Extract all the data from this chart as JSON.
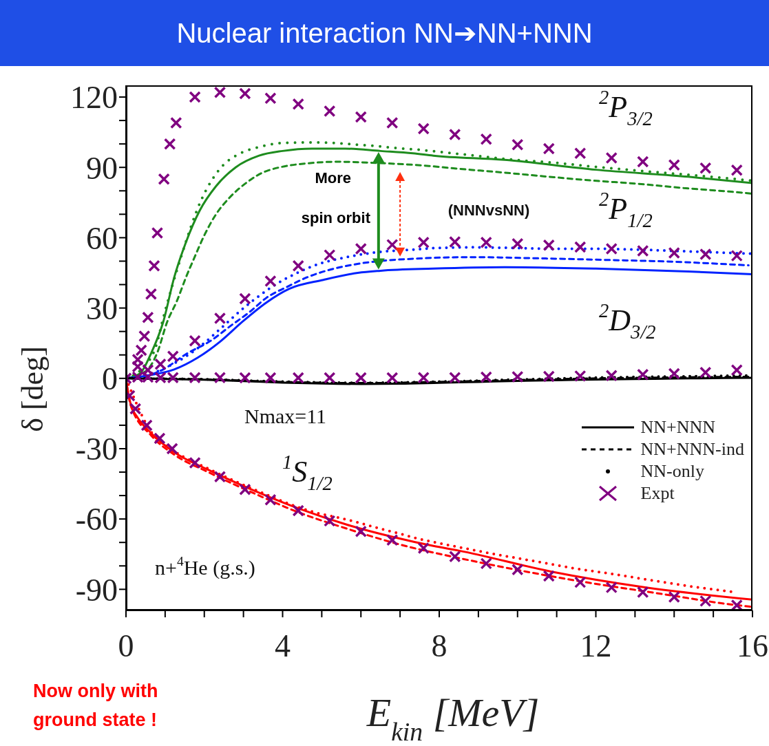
{
  "chart_data": {
    "type": "line",
    "title": "Nuclear interaction NN➔NN+NNN",
    "xlabel": "E$_{kin}$ [MeV]",
    "ylabel": "δ [deg]",
    "xlim": [
      0,
      16
    ],
    "ylim": [
      -99,
      125
    ],
    "xticks": [
      0,
      {
        "value": 1,
        "label": null
      },
      {
        "value": 2,
        "label": null
      },
      {
        "value": 3,
        "label": null
      },
      4,
      {
        "value": 5,
        "label": null
      },
      {
        "value": 6,
        "label": null
      },
      {
        "value": 7,
        "label": null
      },
      8,
      {
        "value": 9,
        "label": null
      },
      {
        "value": 10,
        "label": null
      },
      {
        "value": 11,
        "label": null
      },
      12,
      {
        "value": 13,
        "label": null
      },
      {
        "value": 14,
        "label": null
      },
      {
        "value": 15,
        "label": null
      },
      16
    ],
    "yticks": [
      -90,
      {
        "value": -80,
        "label": null
      },
      {
        "value": -70,
        "label": null
      },
      -60,
      {
        "value": -50,
        "label": null
      },
      {
        "value": -40,
        "label": null
      },
      -30,
      {
        "value": -20,
        "label": null
      },
      {
        "value": -10,
        "label": null
      },
      0,
      {
        "value": 10,
        "label": null
      },
      {
        "value": 20,
        "label": null
      },
      30,
      {
        "value": 40,
        "label": null
      },
      {
        "value": 50,
        "label": null
      },
      60,
      {
        "value": 70,
        "label": null
      },
      {
        "value": 80,
        "label": null
      },
      90,
      {
        "value": 100,
        "label": null
      },
      {
        "value": 110,
        "label": null
      },
      120
    ],
    "legend": "bottom right",
    "series": [
      {
        "line_style": "solid",
        "color": "#1e8c1e",
        "x": [
          0,
          0.35,
          0.65,
          0.95,
          1.23,
          1.53,
          1.88,
          2.3,
          2.8,
          3.4,
          4.0,
          4.75,
          5.6,
          6.5,
          7.33,
          7.85,
          9.67,
          12.0,
          14.36,
          16
        ],
        "values": [
          0,
          2,
          11,
          24,
          43,
          58,
          71.5,
          82,
          90,
          95,
          97,
          98,
          98,
          97,
          96,
          95,
          93.2,
          89,
          86,
          83.3
        ]
      },
      {
        "type": "line",
        "line_style": "dashed",
        "color": "#1e8c1e",
        "x": [
          0,
          0.5,
          0.8,
          1.05,
          1.3,
          1.53,
          1.76,
          2.0,
          2.3,
          2.64,
          3.08,
          3.6,
          4.82,
          5.4,
          6.22,
          7.74,
          8.3,
          9.5,
          10.67,
          11.9,
          13.07,
          14.24,
          15.4,
          16
        ],
        "values": [
          0,
          3,
          11,
          24,
          33,
          43,
          52,
          61,
          70,
          77,
          83.5,
          88.5,
          92,
          92.4,
          92,
          90.6,
          89.7,
          88,
          86.2,
          84.4,
          83,
          81.2,
          79.7,
          78.8
        ]
      },
      {
        "type": "line",
        "line_style": "dotted",
        "color": "#1e8c1e",
        "x": [
          0,
          0.4,
          0.79,
          0.91,
          1.41,
          1.92,
          2.4,
          2.92,
          3.43,
          3.92,
          4.41,
          4.92,
          5.41,
          5.9,
          6.41,
          6.92,
          7.42,
          7.91,
          8.91,
          9.93,
          10.93,
          11.95,
          12.93,
          13.95,
          14.94,
          15.94
        ],
        "values": [
          0,
          4,
          15,
          23,
          52,
          76,
          89.4,
          96,
          98.8,
          100.3,
          100.6,
          100.6,
          100.3,
          99.7,
          99.1,
          98.2,
          97.6,
          96.8,
          95,
          93.2,
          92,
          90.3,
          88.8,
          87.4,
          86,
          84.4
        ]
      },
      {
        "type": "line",
        "line_style": "solid",
        "color": "#0022ff",
        "x": [
          0,
          0.65,
          1.23,
          1.83,
          2.4,
          2.99,
          3.59,
          4.17,
          5.04,
          5.92,
          6.5,
          7.85,
          9.67,
          12.0,
          14.36,
          16
        ],
        "values": [
          0,
          1.5,
          3.8,
          8.8,
          15.6,
          24.4,
          32.4,
          38.2,
          42,
          45,
          45.9,
          46.8,
          47.4,
          46.8,
          45.6,
          44.4
        ]
      },
      {
        "type": "line",
        "line_style": "dashed",
        "color": "#0022ff",
        "x": [
          0,
          0.5,
          0.95,
          1.53,
          2.18,
          2.64,
          3.17,
          3.59,
          4.11,
          4.64,
          5.22,
          5.8,
          7.56,
          8.79,
          10.55,
          12.3,
          14.06,
          15.9
        ],
        "values": [
          0,
          1,
          3.8,
          10.3,
          16.2,
          22,
          28.5,
          34.4,
          39,
          43.2,
          46.4,
          48.5,
          51.2,
          51.7,
          51.2,
          50.5,
          49.7,
          48.2
        ]
      },
      {
        "type": "line",
        "line_style": "dotted",
        "color": "#0022ff",
        "x": [
          0,
          0.5,
          0.91,
          1.42,
          1.92,
          2.4,
          2.92,
          3.41,
          3.92,
          4.41,
          4.92,
          5.41,
          5.92,
          6.41,
          7.42,
          7.91,
          8.91,
          9.93,
          10.93,
          11.95,
          12.93,
          13.95,
          14.94,
          15.94
        ],
        "values": [
          0,
          1.2,
          3.8,
          8.2,
          14,
          21,
          28.8,
          35.3,
          41,
          45.3,
          48.8,
          50.9,
          52.6,
          53.8,
          55,
          55.6,
          55.9,
          55.6,
          55.3,
          55.3,
          55,
          54.4,
          53.8,
          53.2
        ]
      },
      {
        "type": "line",
        "line_style": "solid",
        "color": "#ff0000",
        "x": [
          0,
          0.03,
          0.12,
          0.3,
          0.65,
          1.23,
          2.1,
          3.29,
          4.46,
          5.62,
          6.8,
          7.85,
          8.5,
          10.85,
          13.2,
          16
        ],
        "values": [
          0,
          -3.8,
          -11,
          -16.8,
          -23.5,
          -31.5,
          -39,
          -48,
          -55.8,
          -62.3,
          -67.6,
          -71.5,
          -73.5,
          -82.4,
          -89,
          -94.4
        ]
      },
      {
        "type": "line",
        "line_style": "dashed",
        "color": "#ff0000",
        "x": [
          0,
          0.12,
          0.65,
          1.23,
          2.1,
          3.29,
          4.46,
          5.62,
          6.8,
          9.03,
          11.4,
          13.7,
          15.47,
          16
        ],
        "values": [
          0,
          -11.5,
          -24.5,
          -32.5,
          -40,
          -49.2,
          -57.5,
          -64,
          -70,
          -78.5,
          -86,
          -92,
          -96.5,
          -97.5
        ]
      },
      {
        "type": "line",
        "line_style": "dotted",
        "color": "#ff0000",
        "x": [
          0,
          0.65,
          1.23,
          2.1,
          3.29,
          4.92,
          5.43,
          5.93,
          6.42,
          6.93,
          7.42,
          8.44,
          9.42,
          10.44,
          11.43,
          12.44,
          13.44,
          14.45,
          15.45
        ],
        "values": [
          0,
          -23,
          -31,
          -38.5,
          -47.5,
          -57.6,
          -59.4,
          -61.5,
          -63.8,
          -66,
          -68.2,
          -71.8,
          -75,
          -78,
          -81,
          -83.5,
          -86.2,
          -88.8,
          -91
        ]
      },
      {
        "name": "NN+NNN",
        "type": "line",
        "line_style": "solid",
        "color": "#000000",
        "x": [
          0,
          1,
          2,
          3,
          4,
          5,
          6,
          7,
          8,
          9,
          10,
          11,
          12,
          13,
          14,
          15,
          16
        ],
        "values": [
          0,
          -0.3,
          -0.6,
          -1.2,
          -1.8,
          -2.2,
          -2.4,
          -2.3,
          -1.9,
          -1.5,
          -1.1,
          -0.8,
          -0.5,
          -0.3,
          -0.1,
          0.1,
          0.2
        ]
      },
      {
        "name": "NN+NNN-ind",
        "type": "line",
        "line_style": "dashed",
        "color": "#000000",
        "x": [
          0,
          2,
          4,
          6,
          8,
          10,
          12,
          14,
          16
        ],
        "values": [
          0,
          -0.4,
          -1.5,
          -2,
          -1.5,
          -0.7,
          0,
          0.4,
          0.7
        ]
      },
      {
        "name": "NN-only",
        "type": "line",
        "line_style": "dotted",
        "color": "#000000",
        "x": [
          0,
          2,
          4,
          6,
          8,
          10,
          12,
          14,
          16
        ],
        "values": [
          0,
          -0.4,
          -1.4,
          -1.9,
          -1.4,
          -0.5,
          0.3,
          0.8,
          1.2
        ]
      },
      {
        "name": "Expt",
        "type": "scatter",
        "marker": "cross",
        "color": "#800080",
        "x": [
          0,
          0.3,
          0.39,
          0.47,
          0.56,
          0.64,
          0.72,
          0.8,
          0.97,
          1.12,
          1.28,
          1.76,
          2.4,
          3.04,
          3.69,
          4.4,
          5.2,
          6.0,
          6.8,
          7.6,
          8.4,
          9.2,
          10.0,
          10.8,
          11.6,
          12.4,
          13.2,
          14.0,
          14.8,
          15.6,
          0.3,
          0.56,
          0.88,
          1.2,
          1.76,
          2.4,
          3.04,
          3.69,
          4.4,
          5.2,
          6.0,
          6.8,
          7.6,
          8.4,
          9.2,
          10.0,
          10.8,
          11.6,
          12.4,
          13.2,
          14.0,
          14.8,
          15.6,
          0.3,
          0.56,
          0.88,
          1.2,
          1.76,
          2.4,
          3.04,
          3.69,
          4.4,
          5.2,
          6.0,
          6.8,
          7.6,
          8.4,
          9.2,
          10.0,
          10.8,
          11.6,
          12.4,
          13.2,
          14.0,
          14.8,
          15.6,
          0.09,
          0.24,
          0.53,
          0.86,
          1.18,
          1.76,
          2.4,
          3.04,
          3.69,
          4.4,
          5.2,
          6.0,
          6.8,
          7.6,
          8.4,
          9.2,
          10.0,
          10.8,
          11.6,
          12.4,
          13.2,
          14.0,
          14.8,
          15.6
        ],
        "values": [
          0,
          8,
          12,
          18,
          26,
          36,
          48,
          62,
          85,
          100,
          109,
          120,
          122,
          121.5,
          119.5,
          117,
          114,
          111.5,
          109,
          106.5,
          104,
          102,
          99.7,
          98,
          96,
          94,
          92.4,
          91,
          89.7,
          88.8,
          5,
          3.5,
          6,
          9.4,
          16,
          25.6,
          34,
          41.5,
          48,
          52.6,
          55.3,
          57,
          58,
          58.2,
          58,
          57.4,
          56.8,
          56,
          55.3,
          54.4,
          53.5,
          52.9,
          52.3,
          0.5,
          0.5,
          0.3,
          0.3,
          0.3,
          0.3,
          0.2,
          0.2,
          0.2,
          0.2,
          0.2,
          0.2,
          0.3,
          0.3,
          0.5,
          0.7,
          0.8,
          1,
          1.2,
          1.6,
          2,
          2.5,
          3.5,
          -7.4,
          -13,
          -20,
          -25.6,
          -30,
          -36,
          -42,
          -47.4,
          -51.8,
          -56.4,
          -60.8,
          -65.3,
          -69,
          -72.4,
          -76,
          -79,
          -81.6,
          -84.3,
          -87,
          -89.2,
          -91.2,
          -93.3,
          -95,
          -96.8
        ]
      }
    ],
    "annotations": [
      "$^{2}$P$_{3/2}$",
      "$^{2}$P$_{1/2}$",
      "$^{2}$D$_{3/2}$",
      "$^{1}$S$_{1/2}$",
      "Nmax=11",
      "n+$^{4}$He (g.s.)",
      "More spin orbit",
      "(NNNvsNN)",
      "Now only with ground state !"
    ]
  }
}
